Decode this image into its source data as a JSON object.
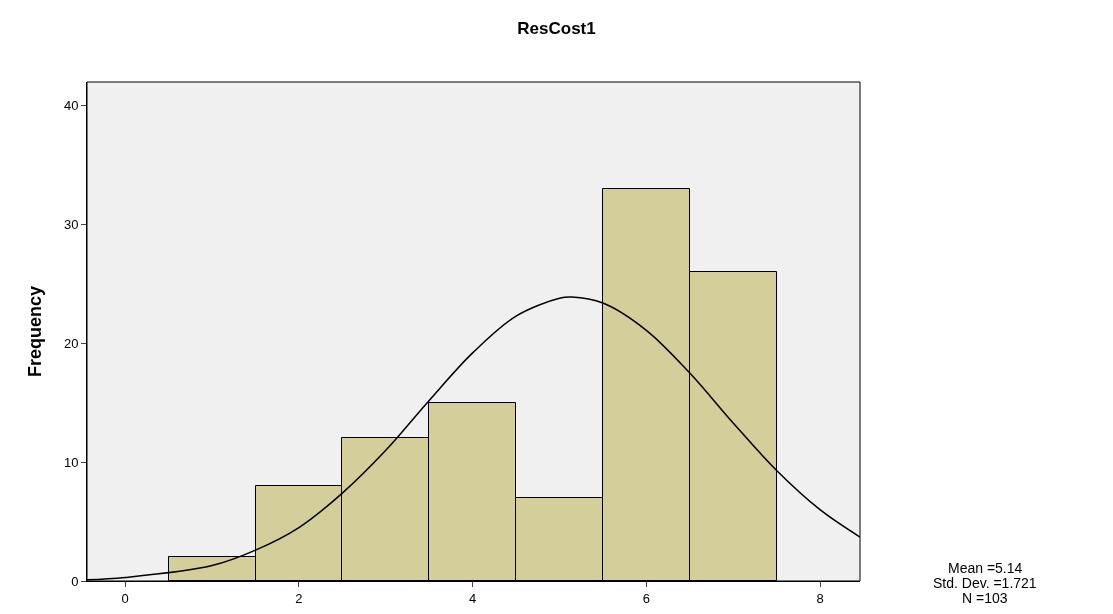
{
  "chart_data": {
    "type": "histogram",
    "title": "ResCost1",
    "ylabel": "Frequency",
    "bins": [
      0.5,
      1.5,
      2.5,
      3.5,
      4.5,
      5.5,
      6.5,
      7.5
    ],
    "values": [
      2,
      8,
      12,
      15,
      7,
      33,
      26
    ],
    "color": "#d3ce9a",
    "series": [
      {
        "type": "line",
        "color": "#000000",
        "x": [
          -0.44,
          0,
          1,
          1.5,
          2,
          2.5,
          3,
          3.5,
          4,
          4.5,
          5,
          5.14,
          5.5,
          6,
          6.5,
          7,
          7.5,
          8,
          8.46
        ],
        "values": [
          0.1,
          0.3,
          1.3,
          2.6,
          4.5,
          7.4,
          11.0,
          15.2,
          19.2,
          22.3,
          23.8,
          23.9,
          23.4,
          21.1,
          17.5,
          13.3,
          9.3,
          6.0,
          3.7
        ]
      }
    ],
    "xlim": [
      -0.44,
      8.46
    ],
    "xticks": [
      0,
      2,
      4,
      6,
      8
    ],
    "ylim": [
      0,
      42
    ],
    "yticks": [
      0,
      10,
      20,
      30,
      40
    ],
    "grid": false,
    "annotations": [
      "Mean =5.14",
      "Std. Dev. =1.721",
      "N =103"
    ]
  }
}
